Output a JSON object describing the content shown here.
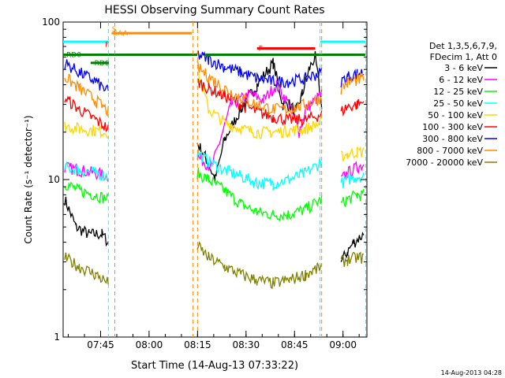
{
  "chart_data": {
    "type": "line",
    "title": "HESSI Observing Summary Count Rates",
    "xlabel": "Start Time (14-Aug-13 07:33:22)",
    "ylabel": "Count Rate (s⁻¹ detector⁻¹)",
    "yscale": "log",
    "ylim": [
      1,
      100
    ],
    "xlim_minutes_after_0733": [
      0,
      94
    ],
    "x_ticks": [
      {
        "label": "07:45",
        "t": 11.6
      },
      {
        "label": "08:00",
        "t": 26.6
      },
      {
        "label": "08:15",
        "t": 41.6
      },
      {
        "label": "08:30",
        "t": 56.6
      },
      {
        "label": "08:45",
        "t": 71.6
      },
      {
        "label": "09:00",
        "t": 86.6
      }
    ],
    "y_tick_labels": [
      "1",
      "10",
      "100"
    ],
    "legend_header": [
      "Det 1,3,5,6,7,9,",
      "FDecim 1, Att 0"
    ],
    "series": [
      {
        "name": "3 - 6 keV",
        "color": "#000000",
        "segments": [
          {
            "t": [
              0.5,
              4,
              8,
              12,
              14
            ],
            "y": [
              7.5,
              5.0,
              4.5,
              4.5,
              4.0
            ]
          },
          {
            "t": [
              41.5,
              44,
              47,
              50,
              55,
              60,
              65,
              68,
              70,
              72,
              74,
              76,
              78,
              80
            ],
            "y": [
              17,
              14,
              10,
              18,
              28,
              40,
              55,
              30,
              30,
              27,
              35,
              50,
              60,
              30
            ]
          },
          {
            "t": [
              86,
              88,
              90,
              93
            ],
            "y": [
              3.0,
              3.5,
              4.0,
              4.5
            ]
          }
        ]
      },
      {
        "name": "6 - 12 keV",
        "color": "#ff00ff",
        "segments": [
          {
            "t": [
              0.5,
              5,
              10,
              14
            ],
            "y": [
              12,
              11.5,
              11,
              10.5
            ]
          },
          {
            "t": [
              41.5,
              46,
              52,
              58,
              62,
              66,
              70,
              73,
              75,
              80
            ],
            "y": [
              14,
              12,
              30,
              35,
              32,
              40,
              30,
              20,
              28,
              35
            ]
          },
          {
            "t": [
              86,
              88,
              91,
              93
            ],
            "y": [
              10,
              11,
              12,
              12.5
            ]
          }
        ]
      },
      {
        "name": "12 - 25 keV",
        "color": "#00ff00",
        "segments": [
          {
            "t": [
              0.5,
              5,
              10,
              14
            ],
            "y": [
              9.5,
              8.5,
              8.0,
              7.5
            ]
          },
          {
            "t": [
              41.5,
              45,
              50,
              55,
              60,
              65,
              70,
              75,
              80
            ],
            "y": [
              11,
              10,
              8.5,
              7.0,
              6.2,
              6.0,
              6.0,
              6.5,
              7.5
            ]
          },
          {
            "t": [
              86,
              88,
              91,
              93
            ],
            "y": [
              7.0,
              7.5,
              8.0,
              8.0
            ]
          }
        ]
      },
      {
        "name": "25 - 50 keV",
        "color": "#00ffff",
        "segments": [
          {
            "t": [
              0.5,
              5,
              10,
              14
            ],
            "y": [
              12,
              11.5,
              11,
              10.5
            ]
          },
          {
            "t": [
              41.5,
              45,
              50,
              55,
              60,
              65,
              70,
              75,
              80
            ],
            "y": [
              15,
              13,
              11.5,
              10.5,
              9.5,
              9.5,
              10,
              11,
              13
            ]
          },
          {
            "t": [
              86,
              88,
              91,
              93
            ],
            "y": [
              9.5,
              10,
              10.5,
              10.5
            ]
          }
        ]
      },
      {
        "name": "50 - 100 keV",
        "color": "#ffd700",
        "segments": [
          {
            "t": [
              0.5,
              5,
              10,
              14
            ],
            "y": [
              22,
              21,
              20.5,
              20
            ]
          },
          {
            "t": [
              41.5,
              45,
              50,
              55,
              60,
              65,
              70,
              75,
              80
            ],
            "y": [
              50,
              28,
              23,
              21,
              20,
              20,
              20.5,
              21,
              23
            ]
          },
          {
            "t": [
              86,
              88,
              91,
              93
            ],
            "y": [
              14,
              14.5,
              15,
              15
            ]
          }
        ]
      },
      {
        "name": "100 - 300 keV",
        "color": "#ff0000",
        "segments": [
          {
            "t": [
              0.5,
              5,
              10,
              14
            ],
            "y": [
              33,
              28,
              24,
              21
            ]
          },
          {
            "t": [
              41.5,
              45,
              50,
              55,
              60,
              65,
              70,
              75,
              80
            ],
            "y": [
              42,
              38,
              34,
              30,
              27,
              25,
              24,
              24,
              26
            ]
          },
          {
            "t": [
              86,
              88,
              91,
              93
            ],
            "y": [
              27,
              29,
              30,
              31
            ]
          }
        ]
      },
      {
        "name": "300 - 800 keV",
        "color": "#0000ff",
        "segments": [
          {
            "t": [
              0.5,
              5,
              10,
              14
            ],
            "y": [
              55,
              48,
              42,
              36
            ]
          },
          {
            "t": [
              41.5,
              45,
              50,
              55,
              60,
              65,
              70,
              75,
              80
            ],
            "y": [
              62,
              58,
              52,
              48,
              44,
              42,
              42,
              44,
              48
            ]
          },
          {
            "t": [
              86,
              88,
              91,
              93
            ],
            "y": [
              42,
              45,
              47,
              48
            ]
          }
        ]
      },
      {
        "name": "800 - 7000 keV",
        "color": "#ff8c00",
        "segments": [
          {
            "t": [
              0.5,
              5,
              10,
              14
            ],
            "y": [
              45,
              38,
              32,
              27
            ]
          },
          {
            "t": [
              41.5,
              45,
              50,
              55,
              60,
              65,
              70,
              75,
              80
            ],
            "y": [
              52,
              45,
              38,
              33,
              30,
              28,
              28,
              30,
              33
            ]
          },
          {
            "t": [
              86,
              88,
              91,
              93
            ],
            "y": [
              38,
              41,
              43,
              44
            ]
          }
        ]
      },
      {
        "name": "7000 - 20000 keV",
        "color": "#808000",
        "segments": [
          {
            "t": [
              0.5,
              5,
              10,
              14
            ],
            "y": [
              3.2,
              2.8,
              2.5,
              2.2
            ]
          },
          {
            "t": [
              41.5,
              45,
              50,
              55,
              60,
              65,
              70,
              75,
              80
            ],
            "y": [
              3.8,
              3.2,
              2.8,
              2.5,
              2.3,
              2.2,
              2.3,
              2.5,
              2.8
            ]
          },
          {
            "t": [
              86,
              88,
              91,
              93
            ],
            "y": [
              3.0,
              3.1,
              3.2,
              3.2
            ]
          }
        ]
      }
    ],
    "flags": [
      {
        "label": "SAA",
        "color": "#ff8c00",
        "t": [
          15,
          39.8
        ],
        "y": 85
      },
      {
        "label": "F",
        "color": "#ff0000",
        "t": [
          60,
          78
        ],
        "y": 68
      },
      {
        "label": "",
        "color": "#00ffff",
        "t": [
          0,
          14
        ],
        "y": 75
      },
      {
        "label": "",
        "color": "#00ffff",
        "t": [
          79.5,
          93.5
        ],
        "y": 75
      },
      {
        "label": "",
        "color": "#008000",
        "t": [
          0,
          41.5
        ],
        "y": 62
      },
      {
        "label": "",
        "color": "#008000",
        "t": [
          44,
          93.5
        ],
        "y": 62
      },
      {
        "label": "",
        "color": "#008000",
        "t": [
          8.5,
          14
        ],
        "y": 55
      },
      {
        "label": "RD0",
        "color": "#008000",
        "t": [
          0.5,
          0.5
        ],
        "y": 62
      },
      {
        "label": "RD0",
        "color": "#008000",
        "t": [
          9.2,
          9.2
        ],
        "y": 55
      },
      {
        "label": "S",
        "color": "#ff8c00",
        "t": [
          14.6,
          14.6
        ],
        "y": 90
      },
      {
        "label": "F",
        "color": "#ff0000",
        "t": [
          12.5,
          12.5
        ],
        "y": 72
      }
    ],
    "vlines": [
      {
        "t": 14.0,
        "color": "#00ffff"
      },
      {
        "t": 16.0,
        "color": "#ff8c00"
      },
      {
        "t": 40.2,
        "color": "#ff8c00"
      },
      {
        "t": 41.6,
        "color": "#ff8c00"
      },
      {
        "t": 80.0,
        "color": "#ff8c00"
      },
      {
        "t": 79.5,
        "color": "#00ffff"
      },
      {
        "t": 93.6,
        "color": "#00ffff"
      }
    ]
  },
  "footer": {
    "timestamp": "14-Aug-2013 04:28"
  }
}
